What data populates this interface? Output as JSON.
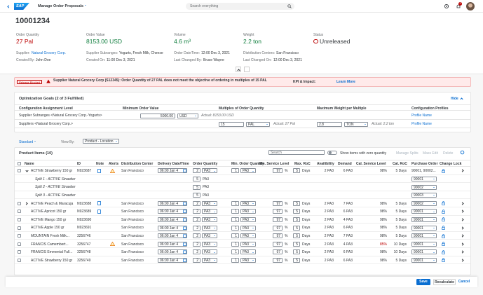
{
  "shell": {
    "logo": "SAP",
    "app": "Manage Order Proposals",
    "search": "Search everything",
    "badge": "2"
  },
  "header": {
    "title": "10001234",
    "kpis": [
      {
        "label": "Order Quantity",
        "value": "27 Pal",
        "state": "error"
      },
      {
        "label": "Order Value",
        "value": "8153.00 USD",
        "state": "good"
      },
      {
        "label": "Volume",
        "value": "4.6 m³",
        "state": "good"
      },
      {
        "label": "Weight",
        "value": "2.2 ton",
        "state": "good"
      },
      {
        "label": "Status",
        "value": "Unreleased",
        "state": "status"
      }
    ],
    "attributes": [
      {
        "label": "Supplier:",
        "value": "Natural Grocery Corp.",
        "link": true
      },
      {
        "label": "Created By:",
        "value": "John Doe"
      },
      {
        "label": "Supplier Subranges:",
        "value": "Yogurts, Fresh Milk, Cheese"
      },
      {
        "label": "Created On:",
        "value": "11:00 Dec 3, 2021"
      },
      {
        "label": "Order DateTime:",
        "value": "12:00 Dec 3, 2021"
      },
      {
        "label": "Last Changed By:",
        "value": "Bruce Wayne"
      },
      {
        "label": "Distribution Centers:",
        "value": "San Francisco"
      },
      {
        "label": "Last Changed On:",
        "value": "12:00 Dec 3, 2021"
      }
    ]
  },
  "message": {
    "tag": "Release Blocked",
    "text": "Supplier Natural Grocery Corp (S12345): Order Quantity of 27 PAL does not meet the objective of ordering in multiples of 15 PAL",
    "kpi": "KPI & Impact:",
    "link": "Learn More"
  },
  "goals": {
    "title": "Optimization Goals (2 of 3 Fulfilled)",
    "hide": "Hide",
    "columns": [
      "Configuration Assignment Level",
      "Minimum Order Value",
      "Multiples of Order Quantity",
      "Maximum Weight per Multiple",
      "Configuration Profiles"
    ],
    "rows": [
      {
        "level": "Supplier Subranges <Natural Grocery Corp.-Yogurts>",
        "min_value": "5000.00",
        "min_unit": "USD",
        "min_actual": "Actual: 8153.00 USD",
        "profile": "Profile Name"
      },
      {
        "level": "Suppliers <Natural Grocery Corp.>",
        "mult": "15",
        "mult_unit": "PAL",
        "mult_actual": "Actual: 27 Pal",
        "weight": "2.8",
        "weight_unit": "TON",
        "weight_actual": "Actual: 2.2 ton",
        "profile": "Profile Name"
      }
    ]
  },
  "toolbar": {
    "variant": "Standard",
    "view_by": "View By:",
    "view": "Product - Location"
  },
  "items": {
    "title": "Product Items (10)",
    "search": "Search",
    "toggle": "Show items with zero quantity",
    "actions": [
      "Manage Splits",
      "Mass Edit",
      "Delete"
    ],
    "columns": [
      "Name",
      "ID",
      "Note",
      "Alerts",
      "Distribution Center",
      "Delivery Date/Time",
      "Order Quantity",
      "Min. Order Quantity",
      "Min. Service Level",
      "Max. RoC",
      "Availibility",
      "Demand",
      "Cal. Service Level",
      "Cal. RoC",
      "Purchase Order",
      "Change Lock"
    ],
    "rows": [
      {
        "name": "ACTIVE Strawberry 150 gr",
        "id": "N923687",
        "note": true,
        "alert": true,
        "expand": "open",
        "dc": "San Francisco",
        "date": "06:00 Jan 4",
        "qty": "2",
        "qty_unit": "PA3",
        "min_qty": "1",
        "min_unit": "PA3",
        "svc": "97",
        "svc_unit": "%",
        "roc": "5",
        "roc_unit": "Days",
        "avail": "2 PA3",
        "demand": "6 PA3",
        "cal_svc": "98%",
        "cal_roc": "5 Days",
        "po": "90001, 90002...",
        "po_text": true
      },
      {
        "split": true,
        "name": "Split 1 - ACTIVE Strawber",
        "qty": "5",
        "qty_unit": "PA3",
        "po": "90001"
      },
      {
        "split": true,
        "name": "Split 2 - ACTIVE Strawber",
        "qty": "5",
        "qty_unit": "PA3",
        "po": "90002"
      },
      {
        "split": true,
        "name": "Split 3 - ACTIVE Strawber",
        "qty": "5",
        "qty_unit": "PA3",
        "po": "90003"
      },
      {
        "name": "ACTIVE Peach & Maracuja",
        "id": "N923688",
        "note": true,
        "expand": "closed",
        "dc": "San Francisco",
        "date": "06:00 Jan 4",
        "qty": "2",
        "qty_unit": "PA3",
        "min_qty": "1",
        "min_unit": "PA3",
        "svc": "97",
        "svc_unit": "%",
        "roc": "5",
        "roc_unit": "Days",
        "avail": "2 PA3",
        "demand": "7 PA3",
        "cal_svc": "98%",
        "cal_roc": "5 Days",
        "po": "90002"
      },
      {
        "name": "ACTIVE Apricot 150 gr",
        "id": "N923689",
        "note": true,
        "dc": "San Francisco",
        "date": "06:00 Jan 4",
        "qty": "2",
        "qty_unit": "PA3",
        "min_qty": "1",
        "min_unit": "PA3",
        "svc": "97",
        "svc_unit": "%",
        "roc": "5",
        "roc_unit": "Days",
        "avail": "2 PA3",
        "demand": "6 PA3",
        "cal_svc": "98%",
        "cal_roc": "5 Days",
        "po": "90001"
      },
      {
        "name": "ACTIVE Mango 150 gr",
        "id": "N923690",
        "dc": "San Francisco",
        "date": "06:00 Jan 4",
        "qty": "2",
        "qty_unit": "PA3",
        "min_qty": "1",
        "min_unit": "PA3",
        "svc": "97",
        "svc_unit": "%",
        "roc": "5",
        "roc_unit": "Days",
        "avail": "2 PA3",
        "demand": "4 PA3",
        "cal_svc": "98%",
        "cal_roc": "5 Days",
        "po": "90001"
      },
      {
        "name": "ACTIVE Apple 150 gr",
        "id": "N923691",
        "dc": "San Francisco",
        "date": "06:00 Jan 4",
        "qty": "2",
        "qty_unit": "PA3",
        "min_qty": "1",
        "min_unit": "PA3",
        "svc": "97",
        "svc_unit": "%",
        "roc": "5",
        "roc_unit": "Days",
        "avail": "2 PA3",
        "demand": "6 PA3",
        "cal_svc": "98%",
        "cal_roc": "5 Days",
        "po": "90001"
      },
      {
        "name": "MOUNTAIN Fresh Milk...",
        "id": "3256746",
        "dc": "San Francisco",
        "date": "06:00 Jan 4",
        "qty": "2",
        "qty_unit": "PA3",
        "min_qty": "1",
        "min_unit": "PA3",
        "svc": "97",
        "svc_unit": "%",
        "roc": "5",
        "roc_unit": "Days",
        "avail": "2 PA3",
        "demand": "7 PA3",
        "cal_svc": "98%",
        "cal_roc": "5 Days",
        "po": "90001"
      },
      {
        "name": "FRANCIS Camembert...",
        "id": "3256747",
        "alert": true,
        "dc": "San Francisco",
        "date": "06:00 Jan 4",
        "qty": "2",
        "qty_unit": "PA3",
        "min_qty": "1",
        "min_unit": "PA3",
        "svc": "97",
        "svc_unit": "%",
        "roc": "5",
        "roc_unit": "Days",
        "avail": "2 PA3",
        "demand": "4 PA3",
        "cal_svc": "85%",
        "cal_svc_state": "error",
        "cal_roc": "10 Days",
        "po": "90001"
      },
      {
        "name": "FRANCIS Emmental Full...",
        "id": "3256748",
        "dc": "San Francisco",
        "date": "06:00 Jan 4",
        "qty": "2",
        "qty_unit": "PA3",
        "min_qty": "1",
        "min_unit": "PA3",
        "svc": "97",
        "svc_unit": "%",
        "roc": "5",
        "roc_unit": "Days",
        "avail": "2 PA3",
        "demand": "6 PA3",
        "cal_svc": "98%",
        "cal_roc": "10 Days",
        "po": "90001"
      },
      {
        "name": "ACTIVE Strawberry 150 gr",
        "id": "3256749",
        "dc": "San Francisco",
        "date": "06:00 Jan 4",
        "qty": "2",
        "qty_unit": "PA3",
        "min_qty": "1",
        "min_unit": "PA3",
        "svc": "97",
        "svc_unit": "%",
        "roc": "5",
        "roc_unit": "Days",
        "avail": "2 PA3",
        "demand": "6 PA3",
        "cal_svc": "98%",
        "cal_roc": "5 Days",
        "po": "90001"
      }
    ]
  },
  "footer": {
    "buttons": [
      "Save",
      "Recalculate",
      "Cancel"
    ]
  }
}
